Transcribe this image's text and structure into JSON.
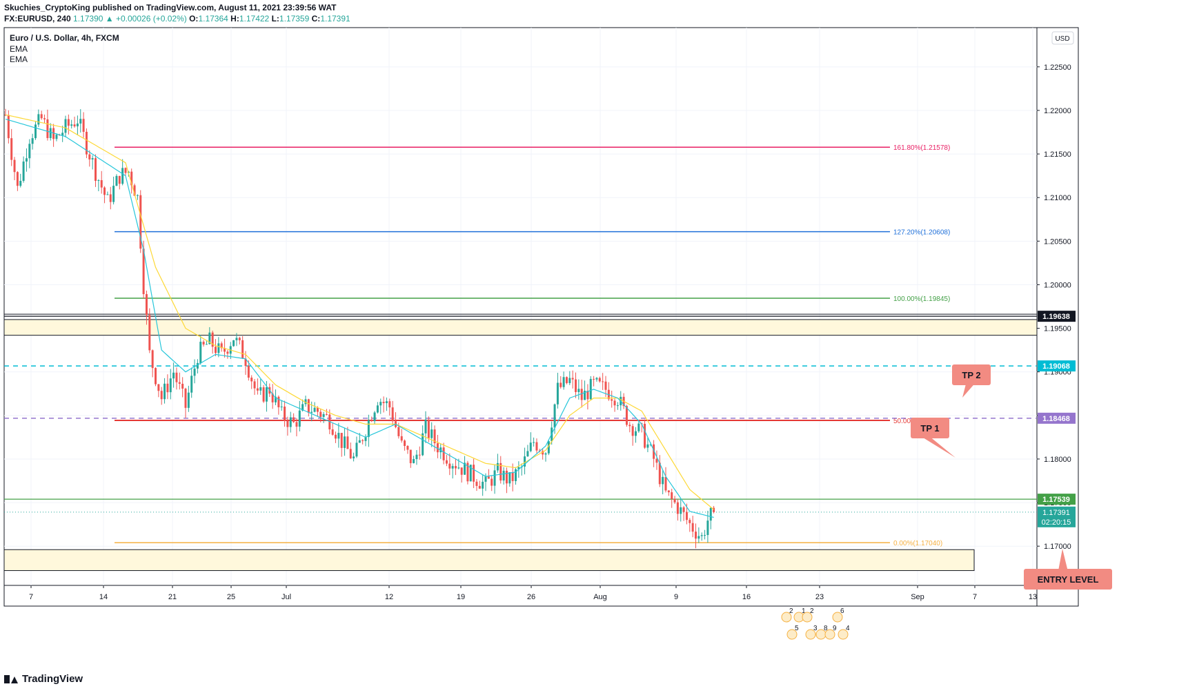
{
  "header": {
    "line1": "Skuchies_CryptoKing published on TradingView.com, August 11, 2021 23:39:56 WAT",
    "symbol": "FX:EURUSD, 240",
    "last": "1.17390",
    "change": "▲ +0.00026 (+0.02%)",
    "o_label": "O:",
    "o": "1.17364",
    "h_label": "H:",
    "h": "1.17422",
    "l_label": "L:",
    "l": "1.17359",
    "c_label": "C:",
    "c": "1.17391"
  },
  "legend": {
    "title": "Euro / U.S. Dollar, 4h, FXCM",
    "ind1": "EMA",
    "ind2": "EMA"
  },
  "currency": "USD",
  "brand": "TradingView",
  "colors": {
    "up": "#26a69a",
    "down": "#ef5350",
    "ema_fast": "#26c6da",
    "ema_slow": "#fdd835",
    "zone_fill": "#fff8dc",
    "fib_1618": "#e91e63",
    "fib_1272": "#1e6fd9",
    "fib_100": "#43a047",
    "fib_50": "#e53935",
    "fib_0": "#f5b041",
    "cyan_dash": "#00bcd4",
    "purple_dash": "#9575cd",
    "callout": "#f28b82"
  },
  "chart_data": {
    "type": "candlestick",
    "title": "Euro / U.S. Dollar, 4h, FXCM",
    "ylim": [
      1.1655,
      1.2295
    ],
    "y_ticks": [
      "1.22500",
      "1.22000",
      "1.21500",
      "1.21000",
      "1.20500",
      "1.20000",
      "1.19500",
      "1.19000",
      "1.18500",
      "1.18000",
      "1.17500",
      "1.17000"
    ],
    "x_ticks": [
      "7",
      "14",
      "21",
      "25",
      "Jul",
      "12",
      "19",
      "26",
      "Aug",
      "9",
      "16",
      "23",
      "Sep",
      "7",
      "13"
    ],
    "price_path": [
      [
        0,
        1.2195
      ],
      [
        4,
        1.211
      ],
      [
        8,
        1.217
      ],
      [
        12,
        1.219
      ],
      [
        16,
        1.2165
      ],
      [
        20,
        1.218
      ],
      [
        24,
        1.219
      ],
      [
        26,
        1.217
      ],
      [
        30,
        1.213
      ],
      [
        34,
        1.2095
      ],
      [
        38,
        1.2125
      ],
      [
        41,
        1.213
      ],
      [
        44,
        1.21
      ],
      [
        46,
        1.2
      ],
      [
        48,
        1.192
      ],
      [
        52,
        1.187
      ],
      [
        56,
        1.19
      ],
      [
        60,
        1.186
      ],
      [
        64,
        1.192
      ],
      [
        68,
        1.1935
      ],
      [
        72,
        1.192
      ],
      [
        76,
        1.194
      ],
      [
        80,
        1.1915
      ],
      [
        84,
        1.187
      ],
      [
        88,
        1.188
      ],
      [
        92,
        1.185
      ],
      [
        96,
        1.184
      ],
      [
        100,
        1.186
      ],
      [
        104,
        1.1855
      ],
      [
        108,
        1.1845
      ],
      [
        112,
        1.182
      ],
      [
        116,
        1.18
      ],
      [
        120,
        1.1835
      ],
      [
        124,
        1.187
      ],
      [
        128,
        1.186
      ],
      [
        132,
        1.1815
      ],
      [
        136,
        1.1795
      ],
      [
        140,
        1.1835
      ],
      [
        144,
        1.1815
      ],
      [
        148,
        1.18
      ],
      [
        152,
        1.179
      ],
      [
        156,
        1.178
      ],
      [
        160,
        1.177
      ],
      [
        164,
        1.1785
      ],
      [
        168,
        1.1775
      ],
      [
        172,
        1.179
      ],
      [
        176,
        1.182
      ],
      [
        180,
        1.181
      ],
      [
        184,
        1.188
      ],
      [
        188,
        1.189
      ],
      [
        192,
        1.187
      ],
      [
        196,
        1.1885
      ],
      [
        200,
        1.188
      ],
      [
        204,
        1.187
      ],
      [
        208,
        1.184
      ],
      [
        212,
        1.183
      ],
      [
        216,
        1.18
      ],
      [
        220,
        1.176
      ],
      [
        224,
        1.1745
      ],
      [
        228,
        1.1725
      ],
      [
        232,
        1.171
      ],
      [
        234,
        1.173
      ],
      [
        236,
        1.1739
      ]
    ],
    "ema_fast_anchor": [
      [
        0,
        1.219
      ],
      [
        20,
        1.217
      ],
      [
        40,
        1.2125
      ],
      [
        46,
        1.204
      ],
      [
        52,
        1.1925
      ],
      [
        60,
        1.19
      ],
      [
        70,
        1.192
      ],
      [
        80,
        1.1915
      ],
      [
        90,
        1.187
      ],
      [
        100,
        1.1855
      ],
      [
        110,
        1.184
      ],
      [
        120,
        1.1825
      ],
      [
        130,
        1.184
      ],
      [
        140,
        1.182
      ],
      [
        150,
        1.18
      ],
      [
        160,
        1.178
      ],
      [
        170,
        1.1785
      ],
      [
        180,
        1.1815
      ],
      [
        188,
        1.187
      ],
      [
        196,
        1.188
      ],
      [
        204,
        1.187
      ],
      [
        212,
        1.184
      ],
      [
        220,
        1.178
      ],
      [
        228,
        1.174
      ],
      [
        236,
        1.1733
      ]
    ],
    "ema_slow_anchor": [
      [
        0,
        1.2195
      ],
      [
        20,
        1.218
      ],
      [
        40,
        1.214
      ],
      [
        50,
        1.202
      ],
      [
        60,
        1.195
      ],
      [
        70,
        1.193
      ],
      [
        80,
        1.192
      ],
      [
        90,
        1.1885
      ],
      [
        100,
        1.1865
      ],
      [
        110,
        1.185
      ],
      [
        120,
        1.184
      ],
      [
        130,
        1.184
      ],
      [
        140,
        1.1825
      ],
      [
        150,
        1.181
      ],
      [
        160,
        1.1795
      ],
      [
        170,
        1.179
      ],
      [
        180,
        1.181
      ],
      [
        188,
        1.185
      ],
      [
        196,
        1.187
      ],
      [
        204,
        1.187
      ],
      [
        212,
        1.1855
      ],
      [
        220,
        1.181
      ],
      [
        228,
        1.1765
      ],
      [
        236,
        1.1742
      ]
    ],
    "fib_levels": [
      {
        "label": "161.80%(1.21578)",
        "value": 1.21578
      },
      {
        "label": "127.20%(1.20608)",
        "value": 1.20608
      },
      {
        "label": "100.00%(1.19845)",
        "value": 1.19845
      },
      {
        "label": "50.00%(1.18443)",
        "value": 1.18443
      },
      {
        "label": "0.00%(1.17040)",
        "value": 1.1704
      }
    ],
    "zones": [
      {
        "top": 1.196,
        "bottom": 1.1942
      },
      {
        "top": 1.1696,
        "bottom": 1.1672
      }
    ],
    "hlines": [
      {
        "value": 1.19638,
        "style": "solid",
        "color": "#131722",
        "label": "1.19638"
      },
      {
        "value": 1.19068,
        "style": "dash",
        "color": "#00bcd4",
        "label": "1.19068"
      },
      {
        "value": 1.18468,
        "style": "dash",
        "color": "#9575cd",
        "label": "1.18468"
      },
      {
        "value": 1.17539,
        "style": "solid",
        "color": "#43a047",
        "label": "1.17539"
      }
    ],
    "last_price": {
      "value": 1.17391,
      "label": "1.17391",
      "countdown": "02:20:15"
    },
    "annotations": [
      "TP 2",
      "TP 1",
      "ENTRY LEVEL"
    ],
    "event_numbers": [
      "2",
      "1",
      "2",
      "6",
      "5",
      "3",
      "8",
      "9",
      "4"
    ]
  }
}
